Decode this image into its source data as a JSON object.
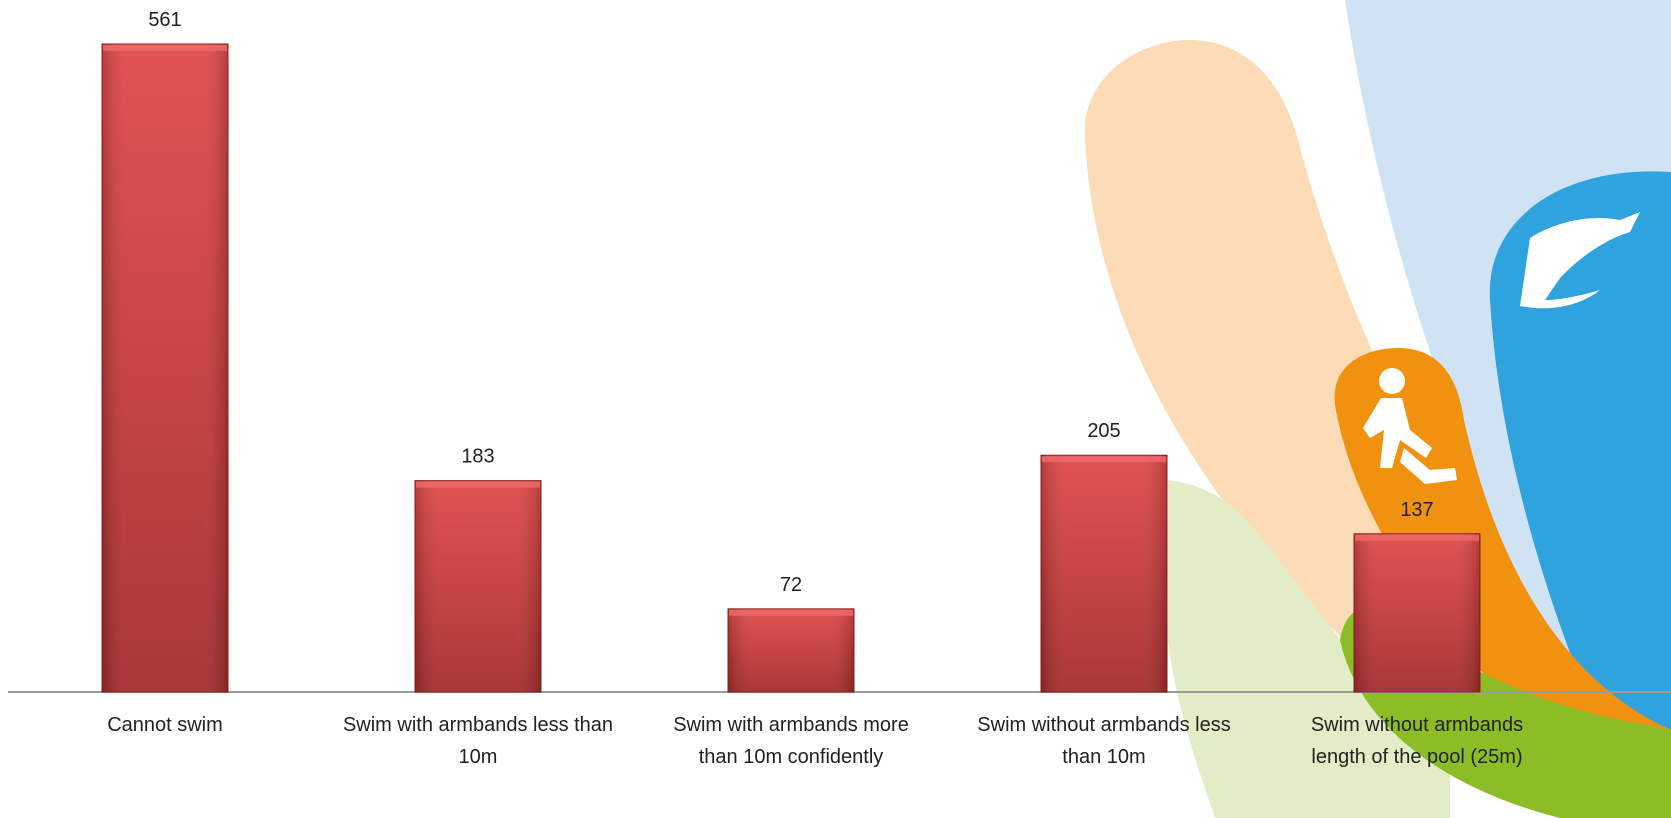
{
  "chart_data": {
    "type": "bar",
    "title": "",
    "xlabel": "",
    "ylabel": "",
    "categories": [
      "Cannot swim",
      "Swim with armbands less than 10m",
      "Swim with armbands more than 10m confidently",
      "Swim without armbands less than 10m",
      "Swim without armbands length of the pool (25m)"
    ],
    "values": [
      561,
      183,
      72,
      205,
      137
    ],
    "ylim": [
      0,
      561
    ],
    "grid": false,
    "legend": "none",
    "data_labels": true
  },
  "colors": {
    "bar_top": "#e14848",
    "bar_bottom": "#a42b2b",
    "bar_edge": "#8a2323",
    "axis": "#9a9a9a",
    "decor_peach": "#fbdcb6",
    "decor_lightblue": "#cfe3f5",
    "decor_blue": "#2ea3dd",
    "decor_orange": "#f0920f",
    "decor_green": "#8cbd26",
    "decor_lightgreen": "#e2ecc6"
  },
  "icons": [
    "runner-icon",
    "swimmer-icon"
  ]
}
